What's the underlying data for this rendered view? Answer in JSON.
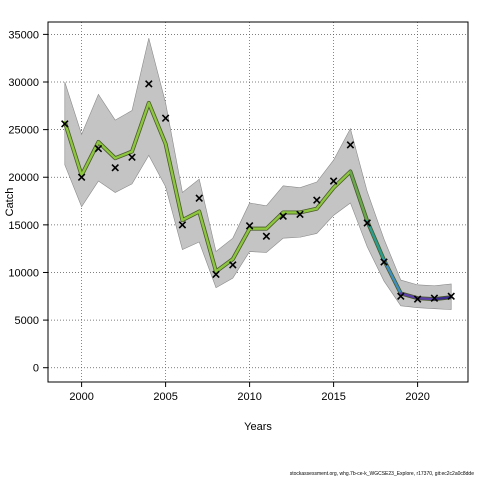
{
  "chart_data": {
    "type": "line",
    "xlabel": "Years",
    "ylabel": "Catch",
    "xlim": [
      1998,
      2023
    ],
    "ylim": [
      -1500,
      36300
    ],
    "x_ticks": [
      2000,
      2005,
      2010,
      2015,
      2020
    ],
    "y_ticks": [
      0,
      5000,
      10000,
      15000,
      20000,
      25000,
      30000,
      35000
    ],
    "grid": true,
    "band_color": "#c4c4c4",
    "band_edge_color": "#8a8a8a",
    "fit_colors": [
      "#8dc63f",
      "#6aa84f",
      "#2a9d8f",
      "#3f8fbf",
      "#5b3fa8",
      "#3a2a8f"
    ],
    "observed": {
      "x": [
        1999,
        2000,
        2001,
        2002,
        2003,
        2004,
        2005,
        2006,
        2007,
        2008,
        2009,
        2010,
        2011,
        2012,
        2013,
        2014,
        2015,
        2016,
        2017,
        2018,
        2019,
        2020,
        2021,
        2022
      ],
      "y": [
        25600,
        20000,
        23000,
        21000,
        22100,
        29800,
        26200,
        15000,
        17800,
        9800,
        10800,
        14900,
        13800,
        15900,
        16100,
        17600,
        19600,
        23400,
        15200,
        11100,
        7500,
        7200,
        7300,
        7500
      ]
    },
    "fit": {
      "x": [
        1999,
        2000,
        2001,
        2002,
        2003,
        2004,
        2005,
        2006,
        2007,
        2008,
        2009,
        2010,
        2011,
        2012,
        2013,
        2014,
        2015,
        2016,
        2017,
        2018,
        2019,
        2020,
        2021,
        2022
      ],
      "y": [
        25800,
        20200,
        23700,
        22000,
        22700,
        27800,
        23500,
        15500,
        16400,
        10100,
        11400,
        14600,
        14600,
        16300,
        16300,
        16700,
        18900,
        20600,
        15400,
        11300,
        7800,
        7300,
        7200,
        7400
      ]
    },
    "band": {
      "x": [
        1999,
        2000,
        2001,
        2002,
        2003,
        2004,
        2005,
        2006,
        2007,
        2008,
        2009,
        2010,
        2011,
        2012,
        2013,
        2014,
        2015,
        2016,
        2017,
        2018,
        2019,
        2020,
        2021,
        2022
      ],
      "lower": [
        21300,
        16900,
        19600,
        18400,
        19300,
        22300,
        19000,
        12400,
        13200,
        8400,
        9400,
        12200,
        12100,
        13600,
        13700,
        14100,
        16000,
        17300,
        12700,
        9100,
        6500,
        6300,
        6200,
        6100
      ],
      "upper": [
        30000,
        24500,
        28700,
        26000,
        27000,
        34600,
        27800,
        18400,
        19800,
        12200,
        13600,
        17300,
        17000,
        19100,
        18900,
        19500,
        21800,
        25100,
        18500,
        13500,
        9200,
        8700,
        8600,
        8800
      ]
    }
  },
  "footer": {
    "source": "stockassessment.org, whg.7b-ce-k_WGCSE23_Explore, r17370, git:ec2c2a0c8dde"
  }
}
